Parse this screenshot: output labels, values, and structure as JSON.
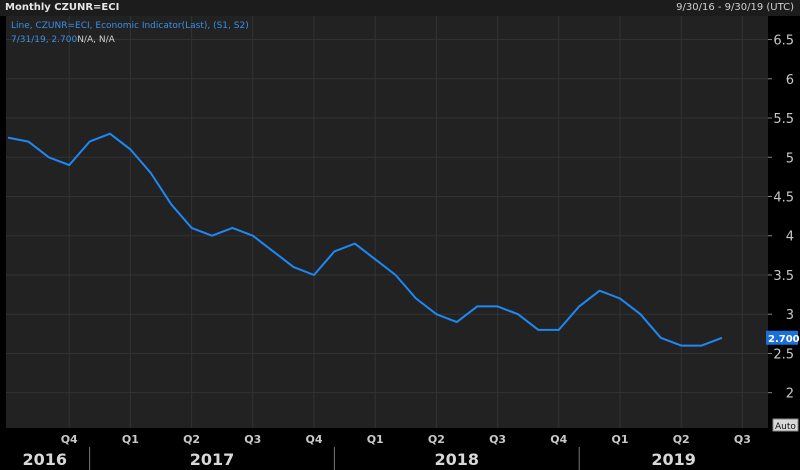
{
  "header": {
    "title": "Monthly CZUNR=ECI",
    "date_range": "9/30/16 - 9/30/19 (UTC)"
  },
  "legend": {
    "series_label": "Line, CZUNR=ECI, Economic Indicator(Last), (S1, S2)",
    "last_value_text": "7/31/19, 2.700",
    "na_text": "N/A, N/A"
  },
  "auto_label": "Auto",
  "colors": {
    "background": "#000000",
    "plot_background": "#222222",
    "line": "#1e88f5",
    "grid": "#333333",
    "text": "#c8c8c8",
    "last_value_badge": "#1a6fd8"
  },
  "chart_data": {
    "type": "line",
    "y_ticks": [
      "2",
      "2.5",
      "3",
      "3.5",
      "4",
      "4.5",
      "5",
      "5.5",
      "6",
      "6.5"
    ],
    "y_tick_values": [
      2,
      2.5,
      3,
      3.5,
      4,
      4.5,
      5,
      5.5,
      6,
      6.5
    ],
    "ylim": [
      1.55,
      6.8
    ],
    "last_value_label": "2.700",
    "quarter_ticks": [
      "Q4",
      "Q1",
      "Q2",
      "Q3",
      "Q4",
      "Q1",
      "Q2",
      "Q3",
      "Q4",
      "Q1",
      "Q2",
      "Q3"
    ],
    "years": [
      "2016",
      "2017",
      "2018",
      "2019"
    ],
    "x_start": "2016-09",
    "series": [
      {
        "values": [
          5.25,
          5.2,
          5.0,
          4.9,
          5.2,
          5.3,
          5.1,
          4.8,
          4.4,
          4.1,
          4.0,
          4.1,
          4.0,
          3.8,
          3.6,
          3.5,
          3.8,
          3.9,
          3.7,
          3.5,
          3.2,
          3.0,
          2.9,
          3.1,
          3.1,
          3.0,
          2.8,
          2.8,
          3.1,
          3.3,
          3.2,
          3.0,
          2.7,
          2.6,
          2.6,
          2.7
        ]
      }
    ],
    "grid": true
  }
}
